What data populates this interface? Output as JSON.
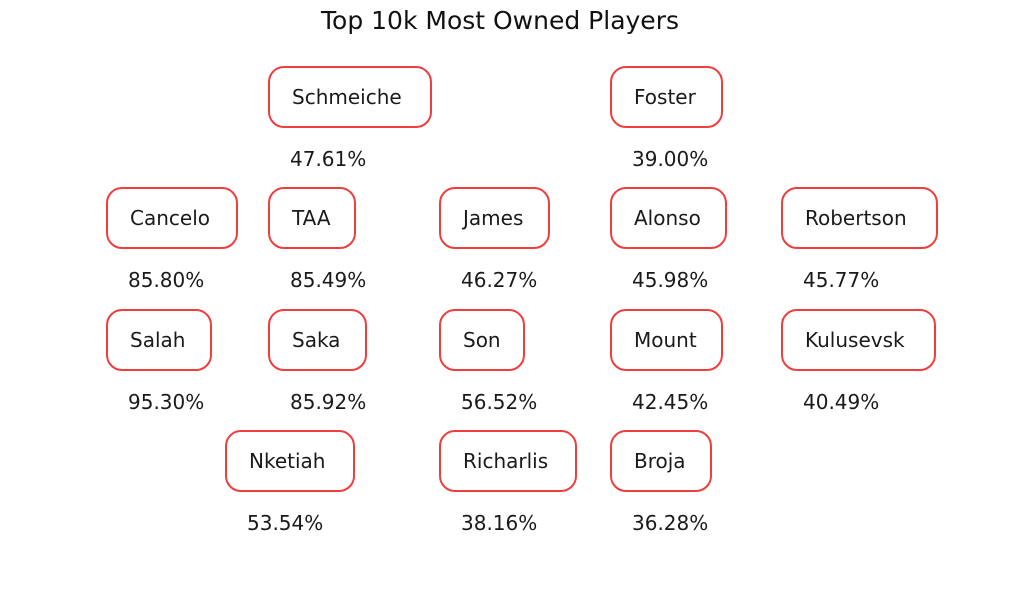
{
  "chart_data": {
    "type": "table",
    "title": "Top 10k Most Owned Players",
    "players": [
      {
        "name": "Schmeiche",
        "ownership": "47.61%"
      },
      {
        "name": "Foster",
        "ownership": "39.00%"
      },
      {
        "name": "Cancelo",
        "ownership": "85.80%"
      },
      {
        "name": "TAA",
        "ownership": "85.49%"
      },
      {
        "name": "James",
        "ownership": "46.27%"
      },
      {
        "name": "Alonso",
        "ownership": "45.98%"
      },
      {
        "name": "Robertson",
        "ownership": "45.77%"
      },
      {
        "name": "Salah",
        "ownership": "95.30%"
      },
      {
        "name": "Saka",
        "ownership": "85.92%"
      },
      {
        "name": "Son",
        "ownership": "56.52%"
      },
      {
        "name": "Mount",
        "ownership": "42.45%"
      },
      {
        "name": "Kulusevsk",
        "ownership": "40.49%"
      },
      {
        "name": "Nketiah",
        "ownership": "53.54%"
      },
      {
        "name": "Richarlis",
        "ownership": "38.16%"
      },
      {
        "name": "Broja",
        "ownership": "36.28%"
      }
    ],
    "colors": {
      "box_border": "#ef3e3e"
    }
  }
}
